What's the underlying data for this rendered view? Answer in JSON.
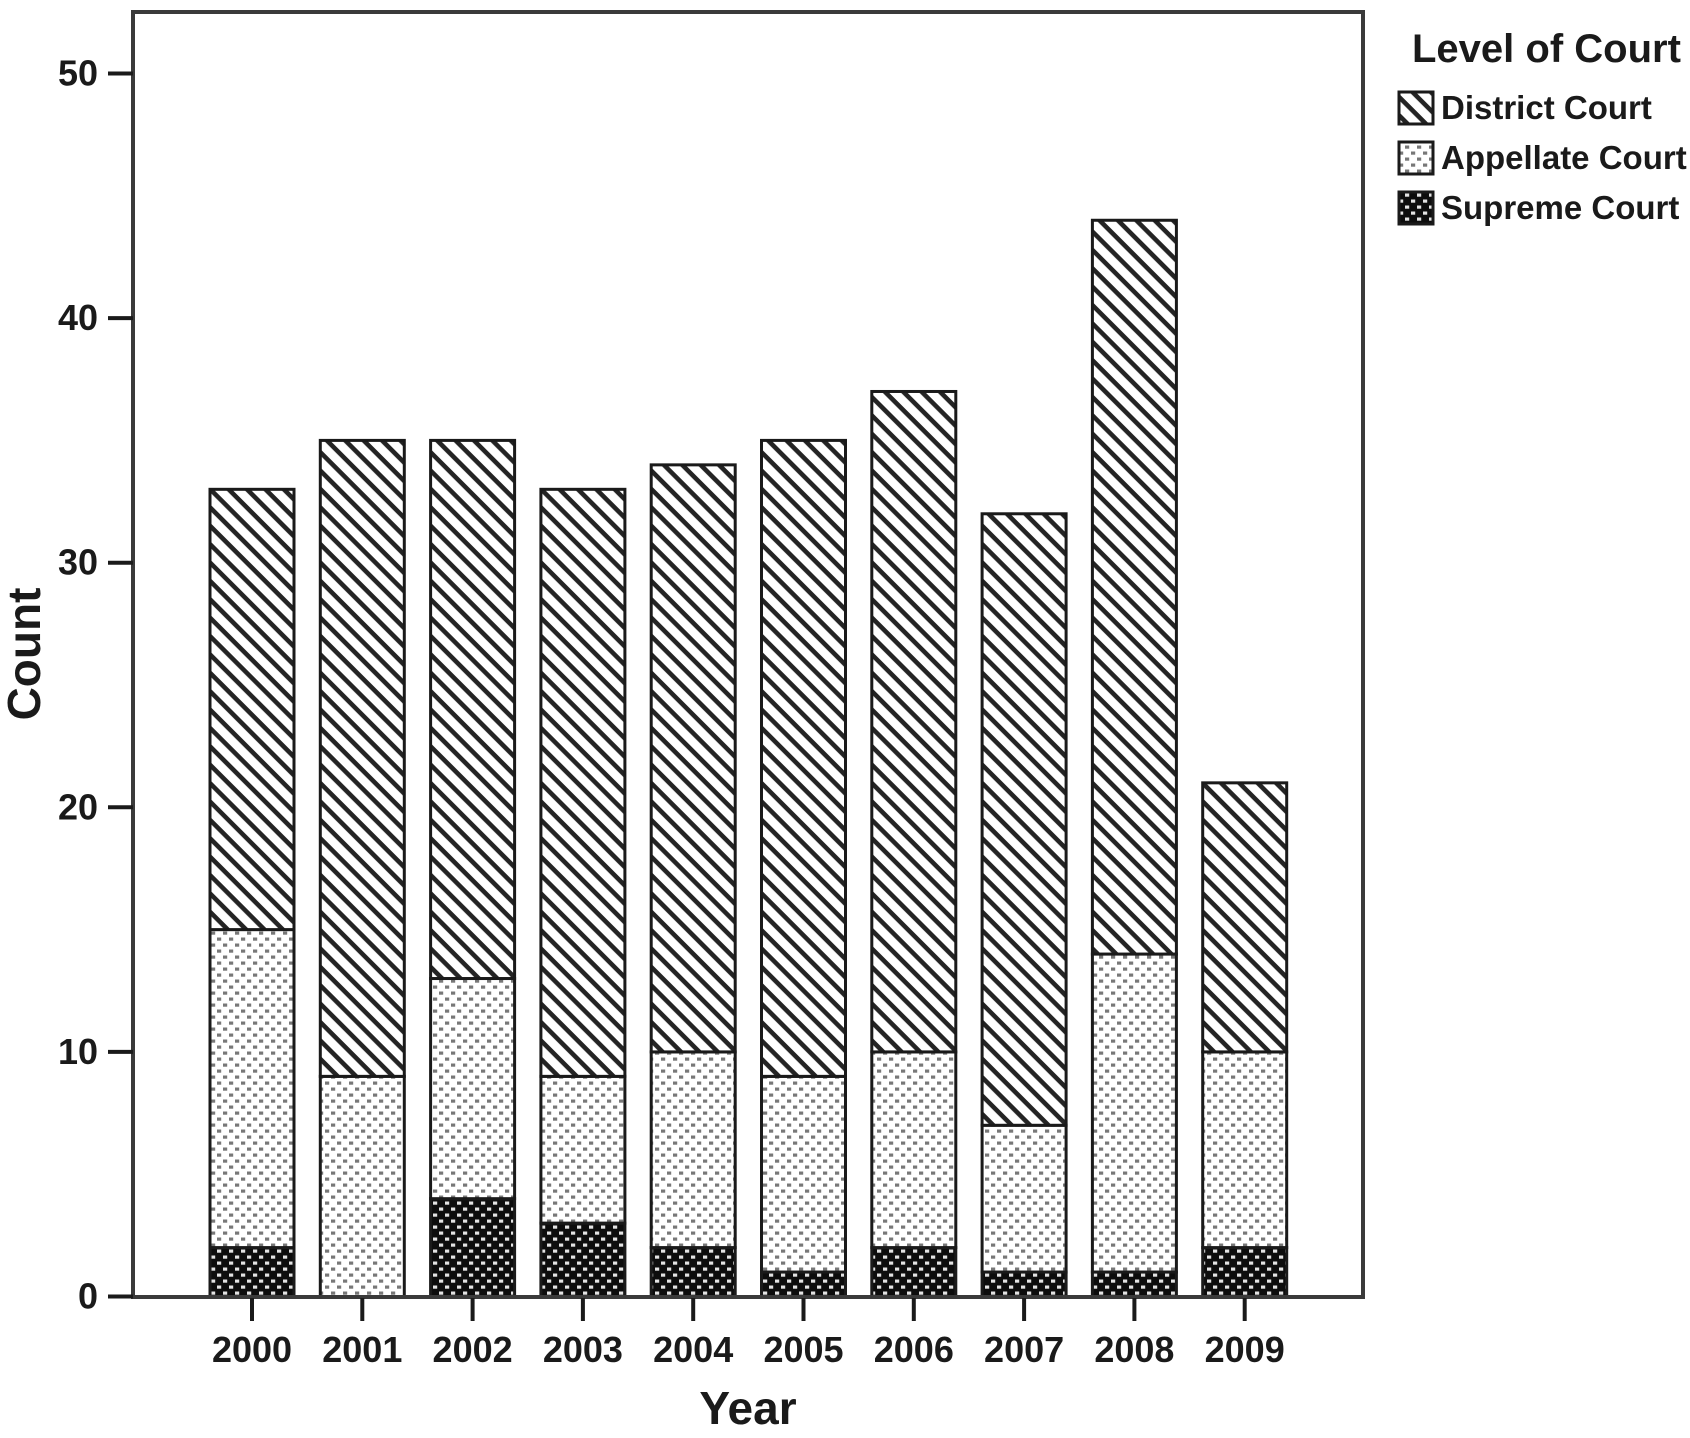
{
  "chart_data": {
    "type": "bar",
    "stacked": true,
    "orientation": "vertical",
    "xlabel": "Year",
    "ylabel": "Count",
    "categories": [
      "2000",
      "2001",
      "2002",
      "2003",
      "2004",
      "2005",
      "2006",
      "2007",
      "2008",
      "2009"
    ],
    "series": [
      {
        "name": "Supreme Court",
        "pattern": "dark-dots",
        "values": [
          2,
          0,
          4,
          3,
          2,
          1,
          2,
          1,
          1,
          2
        ]
      },
      {
        "name": "Appellate Court",
        "pattern": "light-dots",
        "values": [
          13,
          9,
          9,
          6,
          8,
          8,
          8,
          6,
          13,
          8
        ]
      },
      {
        "name": "District Court",
        "pattern": "diagonal-stripes",
        "values": [
          18,
          26,
          22,
          24,
          24,
          26,
          27,
          25,
          30,
          11
        ]
      }
    ],
    "stack_totals": [
      33,
      35,
      35,
      33,
      34,
      35,
      37,
      32,
      44,
      21
    ],
    "ylim": [
      0,
      50
    ],
    "yticks": [
      0,
      10,
      20,
      30,
      40,
      50
    ],
    "grid": false,
    "plot_background": "#ffffff",
    "frame_color": "#3a3a3a",
    "bar_outline_color": "#1a1a1a",
    "text_color": "#1a1a1a",
    "legend": {
      "title": "Level of Court",
      "position": "top-right",
      "entries": [
        {
          "label": "District Court",
          "pattern": "diagonal-stripes"
        },
        {
          "label": "Appellate Court",
          "pattern": "light-dots"
        },
        {
          "label": "Supreme Court",
          "pattern": "dark-dots"
        }
      ]
    }
  }
}
